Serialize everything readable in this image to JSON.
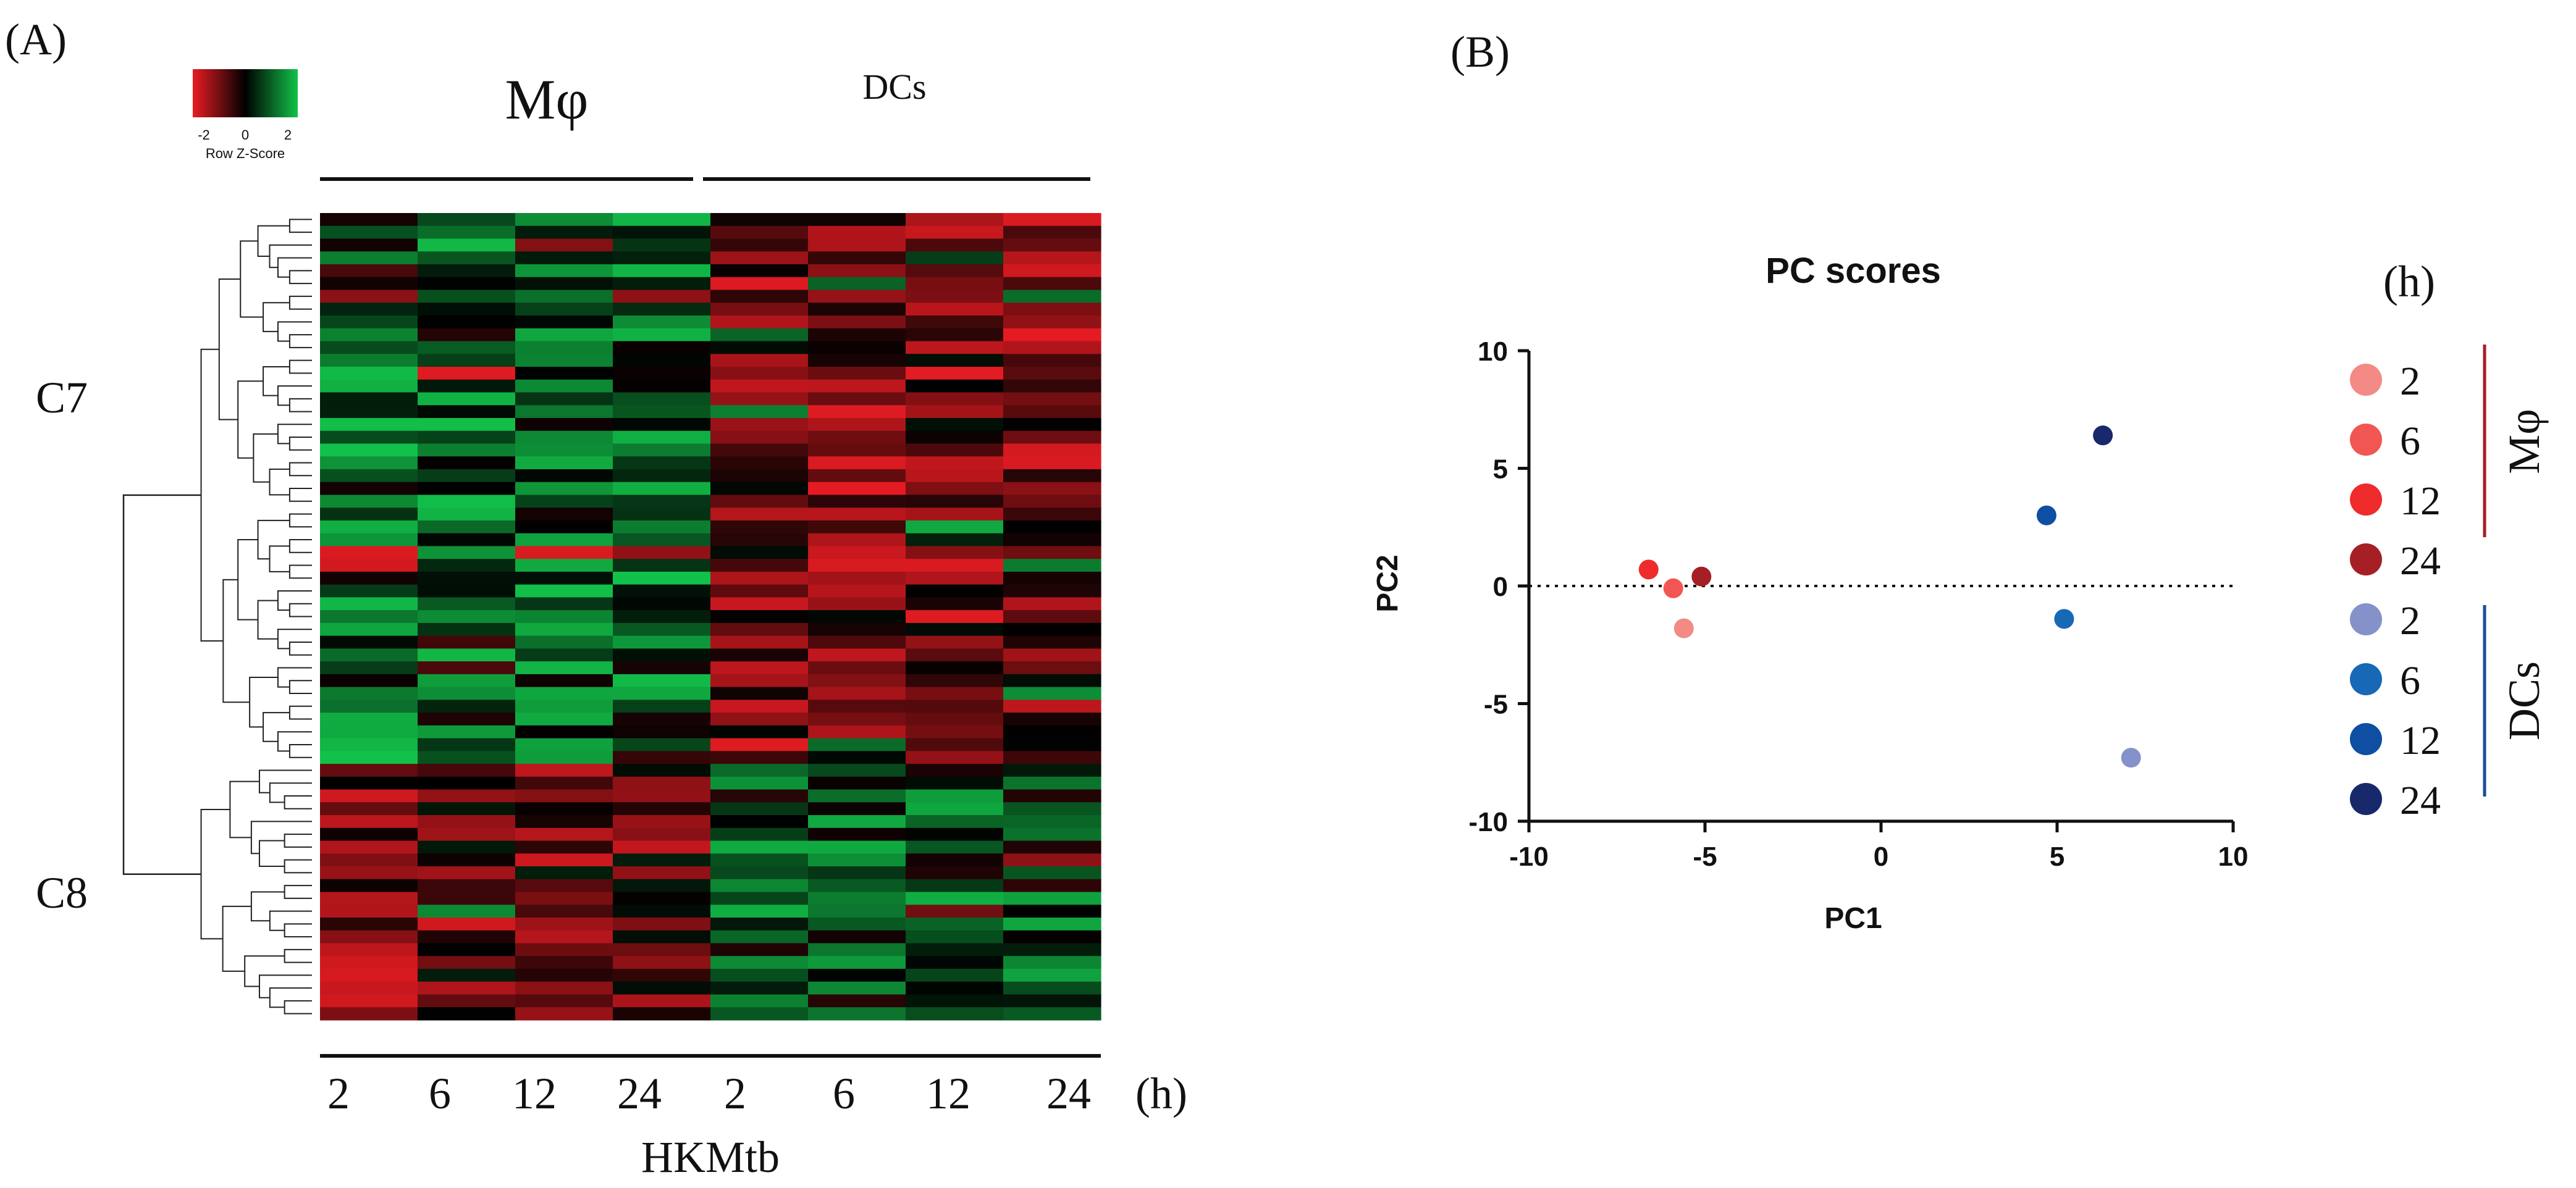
{
  "panel_a": {
    "label": "(A)",
    "colorkey": {
      "ticks": [
        "-2",
        "0",
        "2"
      ],
      "title": "Row Z-Score"
    },
    "group_labels": [
      "Mφ",
      "DCs"
    ],
    "cluster_labels": [
      "C7",
      "C8"
    ],
    "column_labels": [
      "2",
      "6",
      "12",
      "24",
      "2",
      "6",
      "12",
      "24"
    ],
    "unit": "(h)",
    "xlabel": "HKMtb"
  },
  "panel_b": {
    "label": "(B)",
    "legend": {
      "title": "(h)",
      "entries": [
        {
          "label": "2",
          "color": "#f48a84"
        },
        {
          "label": "6",
          "color": "#f15652"
        },
        {
          "label": "12",
          "color": "#ef2b2b"
        },
        {
          "label": "24",
          "color": "#a51f24"
        },
        {
          "label": "2",
          "color": "#8591c9"
        },
        {
          "label": "6",
          "color": "#1768b5"
        },
        {
          "label": "12",
          "color": "#0e4fa3"
        },
        {
          "label": "24",
          "color": "#17296b"
        }
      ],
      "groups": [
        {
          "label": "Mφ",
          "color": "#a51f24"
        },
        {
          "label": "DCs",
          "color": "#1b4b9b"
        }
      ]
    }
  },
  "chart_data": [
    {
      "type": "heatmap",
      "title": "",
      "colorscale": [
        "#e81c23",
        "#000000",
        "#12c24a"
      ],
      "zlim": [
        -2,
        2
      ],
      "columns": [
        "Mφ 2h",
        "Mφ 6h",
        "Mφ 12h",
        "Mφ 24h",
        "DCs 2h",
        "DCs 6h",
        "DCs 12h",
        "DCs 24h"
      ],
      "row_clusters": [
        {
          "name": "C7",
          "rows": 43
        },
        {
          "name": "C8",
          "rows": 20
        }
      ]
    },
    {
      "type": "scatter",
      "title": "PC scores",
      "xlabel": "PC1",
      "ylabel": "PC2",
      "xlim": [
        -10,
        10
      ],
      "ylim": [
        -10,
        10
      ],
      "xticks": [
        -10,
        -5,
        0,
        5,
        10
      ],
      "yticks": [
        -10,
        -5,
        0,
        5,
        10
      ],
      "reference_line": {
        "y": 0,
        "style": "dotted"
      },
      "series": [
        {
          "name": "Mφ 2h",
          "x": -5.6,
          "y": -1.8,
          "color": "#f48a84"
        },
        {
          "name": "Mφ 6h",
          "x": -5.9,
          "y": -0.1,
          "color": "#f15652"
        },
        {
          "name": "Mφ 12h",
          "x": -6.6,
          "y": 0.7,
          "color": "#ef2b2b"
        },
        {
          "name": "Mφ 24h",
          "x": -5.1,
          "y": 0.4,
          "color": "#a51f24"
        },
        {
          "name": "DCs 2h",
          "x": 7.1,
          "y": -7.3,
          "color": "#8591c9"
        },
        {
          "name": "DCs 6h",
          "x": 5.2,
          "y": -1.4,
          "color": "#1768b5"
        },
        {
          "name": "DCs 12h",
          "x": 4.7,
          "y": 3.0,
          "color": "#0e4fa3"
        },
        {
          "name": "DCs 24h",
          "x": 6.3,
          "y": 6.4,
          "color": "#17296b"
        }
      ]
    }
  ]
}
